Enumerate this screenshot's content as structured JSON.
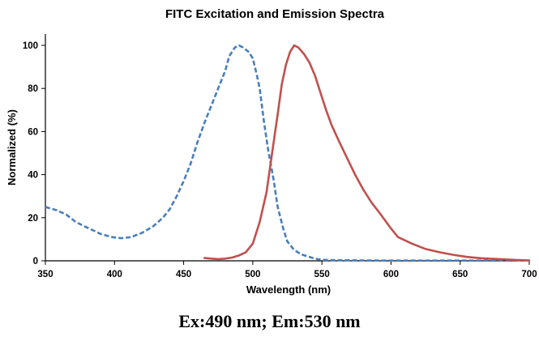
{
  "chart_data": {
    "type": "line",
    "title": "FITC Excitation and Emission Spectra",
    "xlabel": "Wavelength (nm)",
    "ylabel": "Normalized (%)",
    "xlim": [
      350,
      700
    ],
    "ylim": [
      0,
      100
    ],
    "x_ticks": [
      350,
      400,
      450,
      500,
      550,
      600,
      650,
      700
    ],
    "y_ticks": [
      0,
      20,
      40,
      60,
      80,
      100
    ],
    "series": [
      {
        "name": "Excitation",
        "color": "#4a7ebb",
        "style": "dashed",
        "points": [
          [
            350,
            25
          ],
          [
            358,
            23.5
          ],
          [
            365,
            21.5
          ],
          [
            372,
            18
          ],
          [
            380,
            15.5
          ],
          [
            390,
            12.5
          ],
          [
            398,
            11
          ],
          [
            405,
            10.5
          ],
          [
            412,
            11
          ],
          [
            420,
            13
          ],
          [
            428,
            16
          ],
          [
            435,
            20
          ],
          [
            440,
            24
          ],
          [
            445,
            30
          ],
          [
            450,
            37
          ],
          [
            455,
            45
          ],
          [
            460,
            55
          ],
          [
            465,
            64
          ],
          [
            470,
            72
          ],
          [
            475,
            80
          ],
          [
            480,
            88
          ],
          [
            483,
            95
          ],
          [
            487,
            99
          ],
          [
            490,
            100
          ],
          [
            493,
            99
          ],
          [
            497,
            97
          ],
          [
            500,
            94
          ],
          [
            503,
            86
          ],
          [
            505,
            80
          ],
          [
            508,
            65
          ],
          [
            511,
            52
          ],
          [
            515,
            38
          ],
          [
            518,
            25
          ],
          [
            522,
            15
          ],
          [
            525,
            9
          ],
          [
            530,
            5
          ],
          [
            535,
            3
          ],
          [
            540,
            2
          ],
          [
            545,
            1
          ],
          [
            550,
            0.5
          ],
          [
            560,
            0.3
          ],
          [
            580,
            0.2
          ],
          [
            600,
            0.1
          ],
          [
            700,
            0.1
          ]
        ]
      },
      {
        "name": "Emission",
        "color": "#c0504d",
        "style": "solid",
        "points": [
          [
            465,
            1.3
          ],
          [
            470,
            1
          ],
          [
            475,
            0.8
          ],
          [
            480,
            1
          ],
          [
            485,
            1.5
          ],
          [
            490,
            2.5
          ],
          [
            495,
            4
          ],
          [
            500,
            8
          ],
          [
            505,
            18
          ],
          [
            510,
            32
          ],
          [
            514,
            50
          ],
          [
            518,
            68
          ],
          [
            521,
            82
          ],
          [
            524,
            91
          ],
          [
            527,
            97
          ],
          [
            530,
            100
          ],
          [
            533,
            99
          ],
          [
            537,
            96
          ],
          [
            541,
            92
          ],
          [
            545,
            86
          ],
          [
            549,
            78
          ],
          [
            553,
            70
          ],
          [
            557,
            63
          ],
          [
            562,
            56
          ],
          [
            568,
            48
          ],
          [
            574,
            40
          ],
          [
            580,
            33
          ],
          [
            586,
            27
          ],
          [
            592,
            22
          ],
          [
            600,
            15
          ],
          [
            605,
            11
          ],
          [
            615,
            8
          ],
          [
            625,
            5.5
          ],
          [
            635,
            4
          ],
          [
            645,
            2.8
          ],
          [
            655,
            1.8
          ],
          [
            665,
            1.2
          ],
          [
            680,
            0.7
          ],
          [
            690,
            0.4
          ],
          [
            700,
            0.2
          ]
        ]
      }
    ]
  },
  "caption": "Ex:490 nm; Em:530 nm"
}
